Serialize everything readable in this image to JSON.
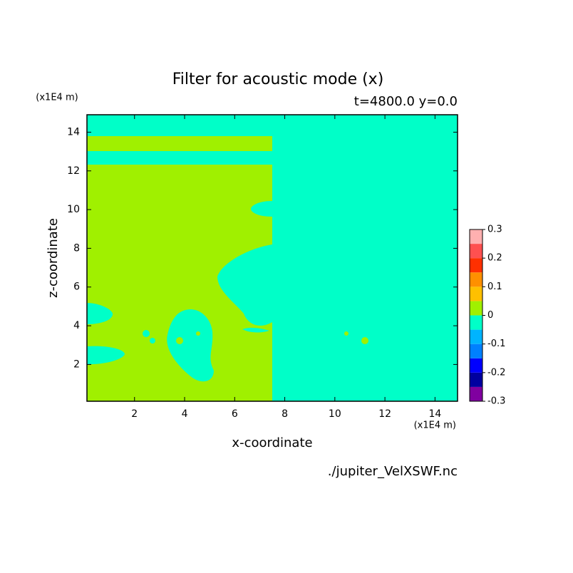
{
  "chart_data": {
    "type": "contour",
    "title": "Filter for acoustic mode (x)",
    "subtitle": "t=4800.0 y=0.0",
    "xlabel": "x-coordinate",
    "ylabel": "z-coordinate",
    "x_unit": "(x1E4 m)",
    "y_unit": "(x1E4 m)",
    "source": "./jupiter_VelXSWF.nc",
    "xlim": [
      0.1,
      14.9
    ],
    "ylim": [
      0.1,
      14.9
    ],
    "xticks": [
      2,
      4,
      6,
      8,
      10,
      12,
      14
    ],
    "yticks": [
      2,
      4,
      6,
      8,
      10,
      12,
      14
    ],
    "colorbar": {
      "levels": [
        -0.3,
        -0.25,
        -0.2,
        -0.15,
        -0.1,
        -0.05,
        0,
        0.05,
        0.1,
        0.15,
        0.2,
        0.25,
        0.3
      ],
      "colors": [
        "#8000a0",
        "#0000a0",
        "#0000ff",
        "#0080ff",
        "#00b4ff",
        "#00ffc8",
        "#a0f000",
        "#ffc000",
        "#ff9000",
        "#ff3000",
        "#ff5050",
        "#ffb0b0"
      ],
      "ticks": [
        -0.3,
        -0.2,
        -0.1,
        0,
        0.1,
        0.2,
        0.3
      ]
    }
  }
}
